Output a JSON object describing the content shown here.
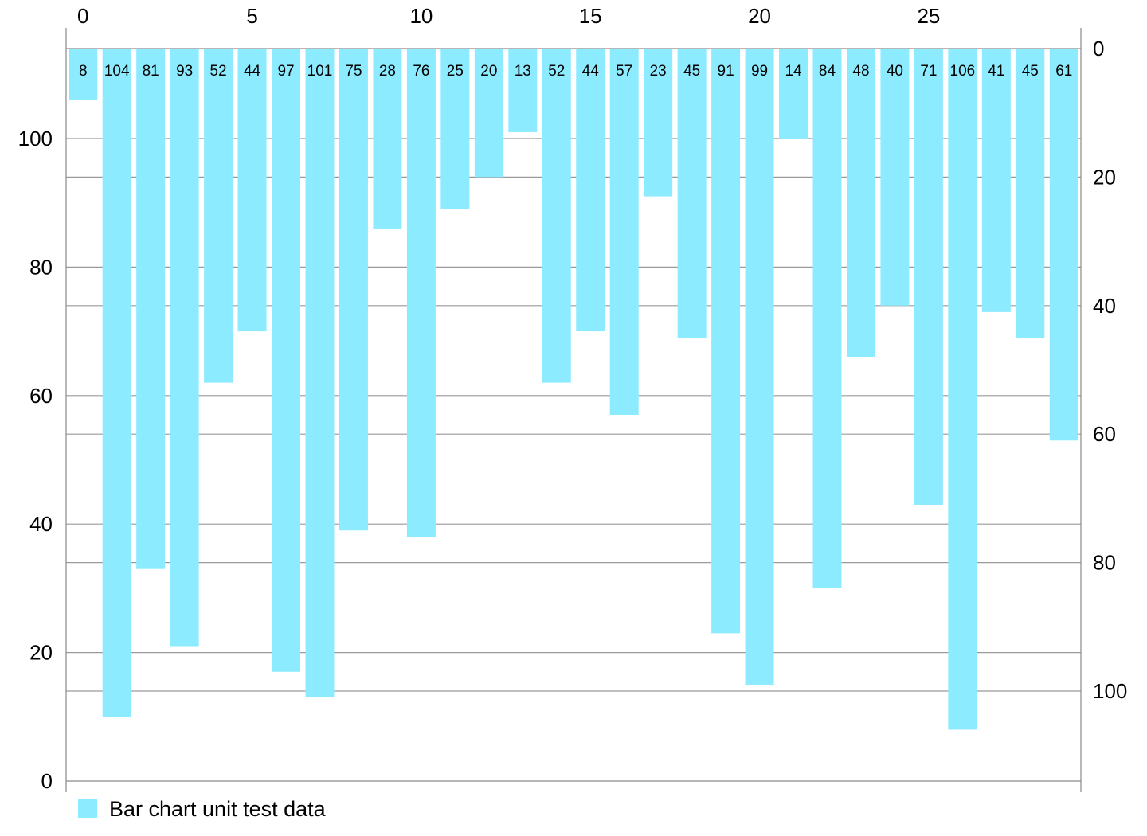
{
  "chart_data": {
    "type": "bar",
    "orientation": "vertical-inverted",
    "x": [
      0,
      1,
      2,
      3,
      4,
      5,
      6,
      7,
      8,
      9,
      10,
      11,
      12,
      13,
      14,
      15,
      16,
      17,
      18,
      19,
      20,
      21,
      22,
      23,
      24,
      25,
      26,
      27,
      28,
      29
    ],
    "series": [
      {
        "name": "Bar chart unit test data",
        "color": "#8DEBFF",
        "values": [
          8,
          104,
          81,
          93,
          52,
          44,
          97,
          101,
          75,
          28,
          76,
          25,
          20,
          13,
          52,
          44,
          57,
          23,
          45,
          91,
          99,
          14,
          84,
          48,
          40,
          71,
          106,
          41,
          45,
          61
        ]
      }
    ],
    "top_axis": {
      "ticks": [
        0,
        5,
        10,
        15,
        20,
        25
      ],
      "labels": [
        "0",
        "5",
        "10",
        "15",
        "20",
        "25"
      ]
    },
    "left_axis": {
      "ticks": [
        0,
        20,
        40,
        60,
        80,
        100
      ],
      "labels": [
        "0",
        "20",
        "40",
        "60",
        "80",
        "100"
      ],
      "min": 0,
      "max": 114
    },
    "right_axis": {
      "ticks": [
        0,
        20,
        40,
        60,
        80,
        100
      ],
      "labels": [
        "0",
        "20",
        "40",
        "60",
        "80",
        "100"
      ],
      "min": 0,
      "max": 114,
      "inverted": true
    },
    "grid": true,
    "data_labels": true,
    "legend": {
      "position": "bottom-left",
      "label": "Bar chart unit test data"
    },
    "colors": {
      "bar": "#8DEBFF",
      "grid": "#9a9a9a",
      "axis": "#8a8a8a"
    }
  }
}
